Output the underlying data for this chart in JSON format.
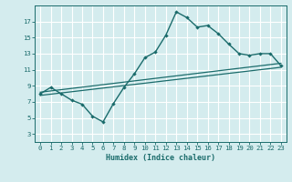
{
  "title": "",
  "xlabel": "Humidex (Indice chaleur)",
  "bg_color": "#d4ecee",
  "grid_color": "#ffffff",
  "line_color": "#1a6b6b",
  "xlim": [
    -0.5,
    23.5
  ],
  "ylim": [
    2,
    19
  ],
  "xticks": [
    0,
    1,
    2,
    3,
    4,
    5,
    6,
    7,
    8,
    9,
    10,
    11,
    12,
    13,
    14,
    15,
    16,
    17,
    18,
    19,
    20,
    21,
    22,
    23
  ],
  "yticks": [
    3,
    5,
    7,
    9,
    11,
    13,
    15,
    17
  ],
  "curve1_x": [
    0,
    1,
    2,
    3,
    4,
    5,
    6,
    7,
    8,
    9,
    10,
    11,
    12,
    13,
    14,
    15,
    16,
    17,
    18,
    19,
    20,
    21,
    22,
    23
  ],
  "curve1_y": [
    8.0,
    8.8,
    8.0,
    7.2,
    6.7,
    5.2,
    4.5,
    6.8,
    8.8,
    10.5,
    12.5,
    13.2,
    15.3,
    18.2,
    17.5,
    16.3,
    16.5,
    15.5,
    14.2,
    13.0,
    12.8,
    13.0,
    13.0,
    11.5
  ],
  "line2_x": [
    0,
    23
  ],
  "line2_y": [
    8.2,
    11.8
  ],
  "line3_x": [
    0,
    23
  ],
  "line3_y": [
    7.8,
    11.3
  ],
  "xlabel_fontsize": 6.0,
  "tick_fontsize": 5.2
}
